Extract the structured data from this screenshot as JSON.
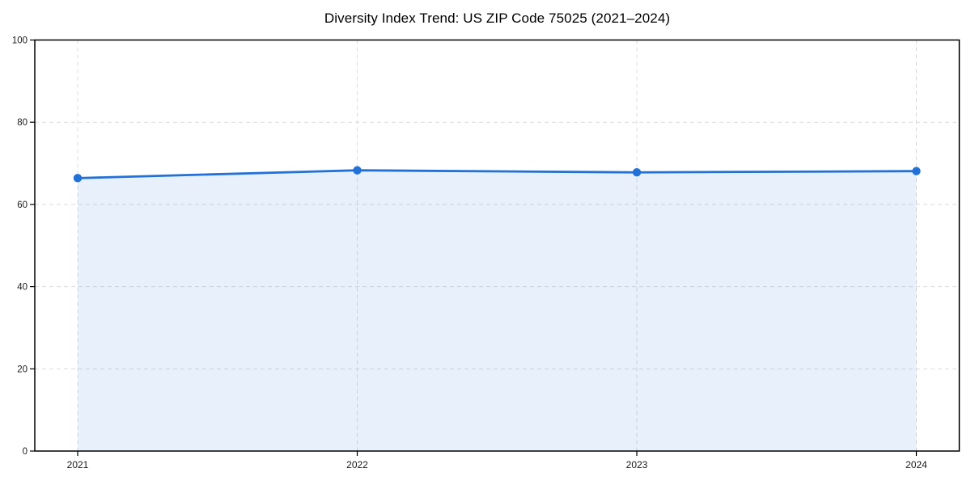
{
  "chart_data": {
    "type": "line",
    "area_fill": true,
    "title": "Diversity Index Trend: US ZIP Code 75025 (2021–2024)",
    "categories": [
      "2021",
      "2022",
      "2023",
      "2024"
    ],
    "series": [
      {
        "name": "Diversity Index",
        "values": [
          66.4,
          68.3,
          67.8,
          68.1
        ]
      }
    ],
    "xlabel": "",
    "ylabel": "",
    "ylim": [
      0,
      100
    ],
    "yticks": [
      0,
      20,
      40,
      60,
      80,
      100
    ],
    "grid": true,
    "grid_style": "dashed",
    "legend_position": "none",
    "colors": {
      "line": "#2171d9",
      "marker": "#2171d9",
      "fill": "#2171d9",
      "fill_opacity": 0.1,
      "grid": "#dcdcdc",
      "frame": "#000000",
      "tick_text": "#1a1a1a",
      "background": "#ffffff"
    }
  }
}
